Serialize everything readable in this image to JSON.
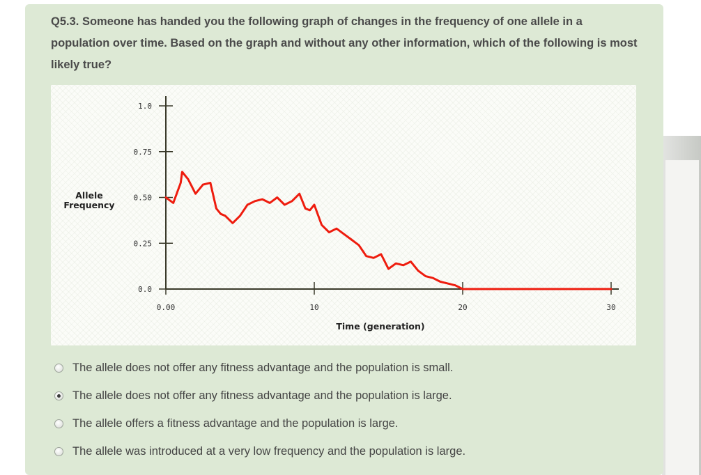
{
  "question": {
    "text": "Q5.3. Someone has handed you the following graph of changes in the frequency of one allele in a population over time. Based on the graph and without any other information, which of the following is most likely true?"
  },
  "chart_data": {
    "type": "line",
    "xlabel": "Time (generation)",
    "ylabel": "Allele Frequency",
    "x_ticks": [
      "0.00",
      "10",
      "20",
      "30"
    ],
    "y_ticks": [
      "0.0",
      "0.25",
      "0.50",
      "0.75",
      "1.0"
    ],
    "xlim": [
      0,
      30
    ],
    "ylim": [
      0,
      1.0
    ],
    "grid": false,
    "series_color": "#ee1c0e",
    "series": [
      {
        "x": [
          0,
          0.5,
          1.0,
          1.1,
          1.5,
          2.0,
          2.5,
          3.0,
          3.4,
          3.7,
          4.0,
          4.5,
          5.0,
          5.5,
          6.0,
          6.5,
          7.0,
          7.5,
          8.0,
          8.5,
          9.0,
          9.4,
          9.7,
          10.0,
          10.5,
          11.0,
          11.5,
          12.0,
          12.5,
          13.0,
          13.5,
          14.0,
          14.5,
          15.0,
          15.5,
          16.0,
          16.5,
          17.0,
          17.5,
          18.0,
          18.5,
          19.0,
          19.5,
          20.0,
          30.0
        ],
        "y": [
          0.5,
          0.47,
          0.58,
          0.64,
          0.6,
          0.52,
          0.57,
          0.58,
          0.44,
          0.41,
          0.4,
          0.36,
          0.4,
          0.46,
          0.48,
          0.49,
          0.47,
          0.5,
          0.46,
          0.48,
          0.52,
          0.44,
          0.43,
          0.46,
          0.35,
          0.31,
          0.33,
          0.3,
          0.27,
          0.24,
          0.18,
          0.17,
          0.19,
          0.11,
          0.14,
          0.13,
          0.15,
          0.1,
          0.07,
          0.06,
          0.04,
          0.03,
          0.02,
          0.0,
          0.0
        ]
      }
    ]
  },
  "options": [
    {
      "label": "The allele does not offer any fitness advantage and the population is small.",
      "selected": false
    },
    {
      "label": "The allele does not offer any fitness advantage and the population is large.",
      "selected": true
    },
    {
      "label": "The allele offers a fitness advantage and the population is large.",
      "selected": false
    },
    {
      "label": "The allele was introduced at a very low frequency and the population is large.",
      "selected": false
    }
  ]
}
